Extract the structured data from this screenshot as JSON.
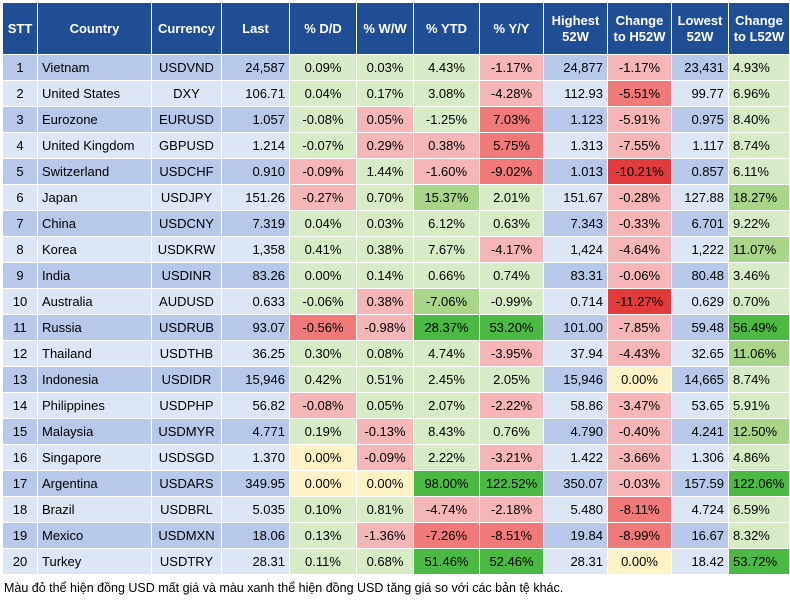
{
  "headers": [
    "STT",
    "Country",
    "Currency",
    "Last",
    "% D/D",
    "% W/W",
    "% YTD",
    "% Y/Y",
    "Highest 52W",
    "Change to H52W",
    "Lowest 52W",
    "Change to L52W"
  ],
  "colors": {
    "header": "#1f4e95",
    "row_odd": "#b7c8e9",
    "row_even": "#dde6f5",
    "neg_light": "#f4b6b6",
    "neg_mid": "#f07a7a",
    "neg_strong": "#e23b3b",
    "pos_light": "#d6ebc6",
    "pos_mid": "#a9d58a",
    "pos_strong": "#4cb944",
    "neutral": "#fdf3c6"
  },
  "rows": [
    {
      "stt": "1",
      "country": "Vietnam",
      "currency": "USDVND",
      "last": "24,587",
      "dd": "0.09%",
      "ww": "0.03%",
      "ytd": "4.43%",
      "yy": "-1.17%",
      "h52": "24,877",
      "ch52": "-1.17%",
      "l52": "23,431",
      "cl52": "4.93%",
      "cls": {
        "dd": "pos-light",
        "ww": "pos-light",
        "ytd": "pos-light",
        "yy": "neg-light",
        "ch52": "neg-light",
        "cl52": "pos-light"
      }
    },
    {
      "stt": "2",
      "country": "United States",
      "currency": "DXY",
      "last": "106.71",
      "dd": "0.04%",
      "ww": "0.17%",
      "ytd": "3.08%",
      "yy": "-4.28%",
      "h52": "112.93",
      "ch52": "-5.51%",
      "l52": "99.77",
      "cl52": "6.96%",
      "cls": {
        "dd": "pos-light",
        "ww": "pos-light",
        "ytd": "pos-light",
        "yy": "neg-light",
        "ch52": "neg-mid",
        "cl52": "pos-light"
      }
    },
    {
      "stt": "3",
      "country": "Eurozone",
      "currency": "EURUSD",
      "last": "1.057",
      "dd": "-0.08%",
      "ww": "0.05%",
      "ytd": "-1.25%",
      "yy": "7.03%",
      "h52": "1.123",
      "ch52": "-5.91%",
      "l52": "0.975",
      "cl52": "8.40%",
      "cls": {
        "dd": "pos-light",
        "ww": "neg-light",
        "ytd": "pos-light",
        "yy": "neg-mid",
        "ch52": "neg-light",
        "cl52": "pos-light"
      }
    },
    {
      "stt": "4",
      "country": "United Kingdom",
      "currency": "GBPUSD",
      "last": "1.214",
      "dd": "-0.07%",
      "ww": "0.29%",
      "ytd": "0.38%",
      "yy": "5.75%",
      "h52": "1.313",
      "ch52": "-7.55%",
      "l52": "1.117",
      "cl52": "8.74%",
      "cls": {
        "dd": "pos-light",
        "ww": "neg-light",
        "ytd": "neg-light",
        "yy": "neg-mid",
        "ch52": "neg-light",
        "cl52": "pos-light"
      }
    },
    {
      "stt": "5",
      "country": "Switzerland",
      "currency": "USDCHF",
      "last": "0.910",
      "dd": "-0.09%",
      "ww": "1.44%",
      "ytd": "-1.60%",
      "yy": "-9.02%",
      "h52": "1.013",
      "ch52": "-10.21%",
      "l52": "0.857",
      "cl52": "6.11%",
      "cls": {
        "dd": "neg-light",
        "ww": "pos-light",
        "ytd": "neg-light",
        "yy": "neg-mid",
        "ch52": "neg-strong",
        "cl52": "pos-light"
      }
    },
    {
      "stt": "6",
      "country": "Japan",
      "currency": "USDJPY",
      "last": "151.26",
      "dd": "-0.27%",
      "ww": "0.70%",
      "ytd": "15.37%",
      "yy": "2.01%",
      "h52": "151.67",
      "ch52": "-0.28%",
      "l52": "127.88",
      "cl52": "18.27%",
      "cls": {
        "dd": "neg-light",
        "ww": "pos-light",
        "ytd": "pos-mid",
        "yy": "pos-light",
        "ch52": "neg-light",
        "cl52": "pos-mid"
      }
    },
    {
      "stt": "7",
      "country": "China",
      "currency": "USDCNY",
      "last": "7.319",
      "dd": "0.04%",
      "ww": "0.03%",
      "ytd": "6.12%",
      "yy": "0.63%",
      "h52": "7.343",
      "ch52": "-0.33%",
      "l52": "6.701",
      "cl52": "9.22%",
      "cls": {
        "dd": "pos-light",
        "ww": "pos-light",
        "ytd": "pos-light",
        "yy": "pos-light",
        "ch52": "neg-light",
        "cl52": "pos-light"
      }
    },
    {
      "stt": "8",
      "country": "Korea",
      "currency": "USDKRW",
      "last": "1,358",
      "dd": "0.41%",
      "ww": "0.38%",
      "ytd": "7.67%",
      "yy": "-4.17%",
      "h52": "1,424",
      "ch52": "-4.64%",
      "l52": "1,222",
      "cl52": "11.07%",
      "cls": {
        "dd": "pos-light",
        "ww": "pos-light",
        "ytd": "pos-light",
        "yy": "neg-light",
        "ch52": "neg-light",
        "cl52": "pos-mid"
      }
    },
    {
      "stt": "9",
      "country": "India",
      "currency": "USDINR",
      "last": "83.26",
      "dd": "0.00%",
      "ww": "0.14%",
      "ytd": "0.66%",
      "yy": "0.74%",
      "h52": "83.31",
      "ch52": "-0.06%",
      "l52": "80.48",
      "cl52": "3.46%",
      "cls": {
        "dd": "pos-light",
        "ww": "pos-light",
        "ytd": "pos-light",
        "yy": "pos-light",
        "ch52": "neg-light",
        "cl52": "pos-light"
      }
    },
    {
      "stt": "10",
      "country": "Australia",
      "currency": "AUDUSD",
      "last": "0.633",
      "dd": "-0.06%",
      "ww": "0.38%",
      "ytd": "-7.06%",
      "yy": "-0.99%",
      "h52": "0.714",
      "ch52": "-11.27%",
      "l52": "0.629",
      "cl52": "0.70%",
      "cls": {
        "dd": "pos-light",
        "ww": "neg-light",
        "ytd": "pos-mid",
        "yy": "pos-light",
        "ch52": "neg-strong",
        "cl52": "pos-light"
      }
    },
    {
      "stt": "11",
      "country": "Russia",
      "currency": "USDRUB",
      "last": "93.07",
      "dd": "-0.56%",
      "ww": "-0.98%",
      "ytd": "28.37%",
      "yy": "53.20%",
      "h52": "101.00",
      "ch52": "-7.85%",
      "l52": "59.48",
      "cl52": "56.49%",
      "cls": {
        "dd": "neg-mid",
        "ww": "neg-light",
        "ytd": "pos-strong",
        "yy": "pos-strong",
        "ch52": "neg-light",
        "cl52": "pos-strong"
      }
    },
    {
      "stt": "12",
      "country": "Thailand",
      "currency": "USDTHB",
      "last": "36.25",
      "dd": "0.30%",
      "ww": "0.08%",
      "ytd": "4.74%",
      "yy": "-3.95%",
      "h52": "37.94",
      "ch52": "-4.43%",
      "l52": "32.65",
      "cl52": "11.06%",
      "cls": {
        "dd": "pos-light",
        "ww": "pos-light",
        "ytd": "pos-light",
        "yy": "neg-light",
        "ch52": "neg-light",
        "cl52": "pos-mid"
      }
    },
    {
      "stt": "13",
      "country": "Indonesia",
      "currency": "USDIDR",
      "last": "15,946",
      "dd": "0.42%",
      "ww": "0.51%",
      "ytd": "2.45%",
      "yy": "2.05%",
      "h52": "15,946",
      "ch52": "0.00%",
      "l52": "14,665",
      "cl52": "8.74%",
      "cls": {
        "dd": "pos-light",
        "ww": "pos-light",
        "ytd": "pos-light",
        "yy": "pos-light",
        "ch52": "neutral",
        "cl52": "pos-light"
      }
    },
    {
      "stt": "14",
      "country": "Philippines",
      "currency": "USDPHP",
      "last": "56.82",
      "dd": "-0.08%",
      "ww": "0.05%",
      "ytd": "2.07%",
      "yy": "-2.22%",
      "h52": "58.86",
      "ch52": "-3.47%",
      "l52": "53.65",
      "cl52": "5.91%",
      "cls": {
        "dd": "neg-light",
        "ww": "pos-light",
        "ytd": "pos-light",
        "yy": "neg-light",
        "ch52": "neg-light",
        "cl52": "pos-light"
      }
    },
    {
      "stt": "15",
      "country": "Malaysia",
      "currency": "USDMYR",
      "last": "4.771",
      "dd": "0.19%",
      "ww": "-0.13%",
      "ytd": "8.43%",
      "yy": "0.76%",
      "h52": "4.790",
      "ch52": "-0.40%",
      "l52": "4.241",
      "cl52": "12.50%",
      "cls": {
        "dd": "pos-light",
        "ww": "neg-light",
        "ytd": "pos-light",
        "yy": "pos-light",
        "ch52": "neg-light",
        "cl52": "pos-mid"
      }
    },
    {
      "stt": "16",
      "country": "Singapore",
      "currency": "USDSGD",
      "last": "1.370",
      "dd": "0.00%",
      "ww": "-0.09%",
      "ytd": "2.22%",
      "yy": "-3.21%",
      "h52": "1.422",
      "ch52": "-3.66%",
      "l52": "1.306",
      "cl52": "4.86%",
      "cls": {
        "dd": "neutral",
        "ww": "neg-light",
        "ytd": "pos-light",
        "yy": "neg-light",
        "ch52": "neg-light",
        "cl52": "pos-light"
      }
    },
    {
      "stt": "17",
      "country": "Argentina",
      "currency": "USDARS",
      "last": "349.95",
      "dd": "0.00%",
      "ww": "0.00%",
      "ytd": "98.00%",
      "yy": "122.52%",
      "h52": "350.07",
      "ch52": "-0.03%",
      "l52": "157.59",
      "cl52": "122.06%",
      "cls": {
        "dd": "neutral",
        "ww": "neutral",
        "ytd": "pos-strong",
        "yy": "pos-strong",
        "ch52": "neg-light",
        "cl52": "pos-strong"
      }
    },
    {
      "stt": "18",
      "country": "Brazil",
      "currency": "USDBRL",
      "last": "5.035",
      "dd": "0.10%",
      "ww": "0.81%",
      "ytd": "-4.74%",
      "yy": "-2.18%",
      "h52": "5.480",
      "ch52": "-8.11%",
      "l52": "4.724",
      "cl52": "6.59%",
      "cls": {
        "dd": "pos-light",
        "ww": "pos-light",
        "ytd": "neg-light",
        "yy": "neg-light",
        "ch52": "neg-mid",
        "cl52": "pos-light"
      }
    },
    {
      "stt": "19",
      "country": "Mexico",
      "currency": "USDMXN",
      "last": "18.06",
      "dd": "0.13%",
      "ww": "-1.36%",
      "ytd": "-7.26%",
      "yy": "-8.51%",
      "h52": "19.84",
      "ch52": "-8.99%",
      "l52": "16.67",
      "cl52": "8.32%",
      "cls": {
        "dd": "pos-light",
        "ww": "neg-light",
        "ytd": "neg-mid",
        "yy": "neg-mid",
        "ch52": "neg-mid",
        "cl52": "pos-light"
      }
    },
    {
      "stt": "20",
      "country": "Turkey",
      "currency": "USDTRY",
      "last": "28.31",
      "dd": "0.11%",
      "ww": "0.68%",
      "ytd": "51.46%",
      "yy": "52.46%",
      "h52": "28.31",
      "ch52": "0.00%",
      "l52": "18.42",
      "cl52": "53.72%",
      "cls": {
        "dd": "pos-light",
        "ww": "pos-light",
        "ytd": "pos-strong",
        "yy": "pos-strong",
        "ch52": "neutral",
        "cl52": "pos-strong"
      }
    }
  ],
  "footnote": "Màu đỏ thể hiện đồng USD mất giá và màu xanh thể hiện đồng USD tăng giá so với các bản tệ khác."
}
